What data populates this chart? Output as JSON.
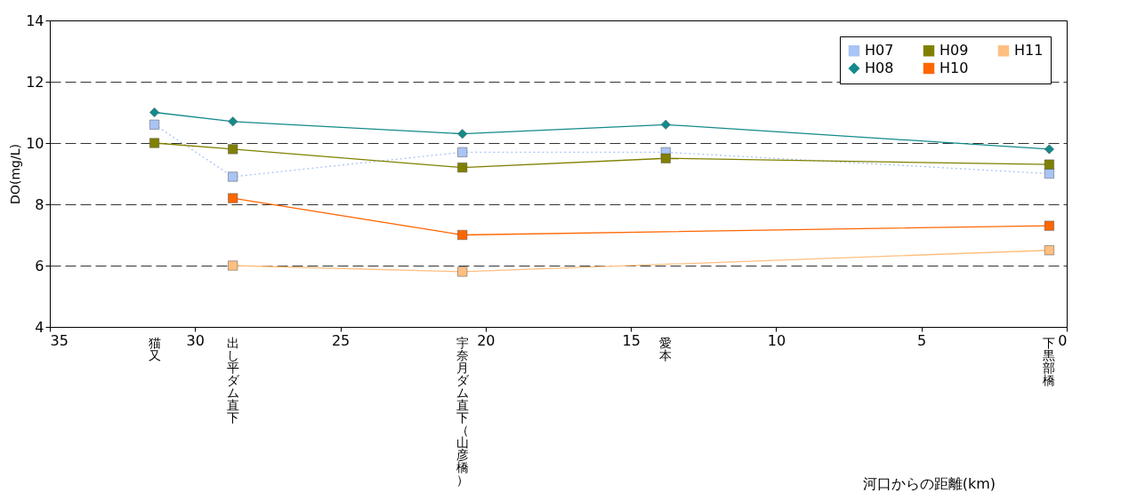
{
  "chart_data": {
    "type": "line",
    "ylabel": "DO(mg/L)",
    "xlim": [
      35,
      0
    ],
    "xticks": [
      35,
      30,
      25,
      20,
      15,
      10,
      5,
      0
    ],
    "ylim": [
      4,
      14
    ],
    "yticks": [
      4,
      6,
      8,
      10,
      12,
      14
    ],
    "grid": "y",
    "legend": "top right",
    "series": [
      {
        "name": "H07",
        "color": "#a9c4f5",
        "marker": "square",
        "line_style": "dotted",
        "x": [
          31.4,
          28.7,
          20.8,
          13.8,
          0.6
        ],
        "values": [
          10.6,
          8.9,
          9.7,
          9.7,
          9.0
        ]
      },
      {
        "name": "H08",
        "color": "#138a8a",
        "marker": "diamond",
        "line_style": "solid",
        "x": [
          31.4,
          28.7,
          20.8,
          13.8,
          0.6
        ],
        "values": [
          11.0,
          10.7,
          10.3,
          10.6,
          9.8
        ]
      },
      {
        "name": "H09",
        "color": "#808000",
        "marker": "square",
        "line_style": "solid",
        "x": [
          31.4,
          28.7,
          20.8,
          13.8,
          0.6
        ],
        "values": [
          10.0,
          9.8,
          9.2,
          9.5,
          9.3
        ]
      },
      {
        "name": "H10",
        "color": "#ff6600",
        "marker": "square",
        "line_style": "solid",
        "x": [
          28.7,
          20.8,
          0.6
        ],
        "values": [
          8.2,
          7.0,
          7.3
        ]
      },
      {
        "name": "H11",
        "color": "#ffbf80",
        "marker": "square",
        "line_style": "solid",
        "x": [
          28.7,
          20.8,
          0.6
        ],
        "values": [
          6.0,
          5.8,
          6.5
        ]
      }
    ],
    "annotations": [
      "猫又",
      "出し平ダム直下",
      "宇奈月ダム直下（山彦橋）",
      "愛本",
      "下黒部橋",
      "河口からの距離(km)"
    ]
  }
}
